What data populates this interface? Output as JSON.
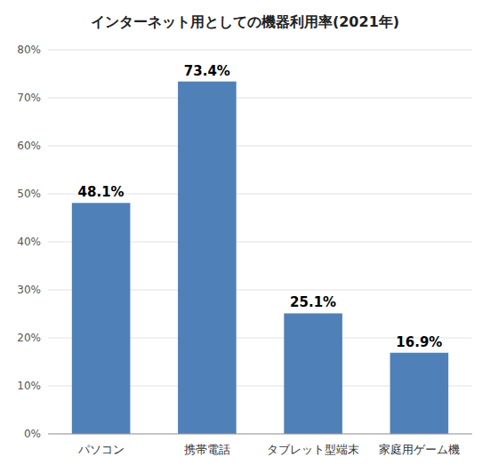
{
  "chart_data": {
    "type": "bar",
    "title": "インターネット用としての機器利用率(2021年)",
    "categories": [
      "パソコン",
      "携帯電話",
      "タブレット型端末",
      "家庭用ゲーム機"
    ],
    "values": [
      48.1,
      73.4,
      25.1,
      16.9
    ],
    "value_labels": [
      "48.1%",
      "73.4%",
      "25.1%",
      "16.9%"
    ],
    "color": "#5080b8",
    "ylim": [
      0,
      80
    ],
    "yticks": [
      {
        "value": 0,
        "label": "0%"
      },
      {
        "value": 10,
        "label": "10%"
      },
      {
        "value": 20,
        "label": "20%"
      },
      {
        "value": 30,
        "label": "30%"
      },
      {
        "value": 40,
        "label": "40%"
      },
      {
        "value": 50,
        "label": "50%"
      },
      {
        "value": 60,
        "label": "60%"
      },
      {
        "value": 70,
        "label": "70%"
      },
      {
        "value": 80,
        "label": "80%"
      }
    ],
    "grid": true,
    "data_labels": true
  }
}
